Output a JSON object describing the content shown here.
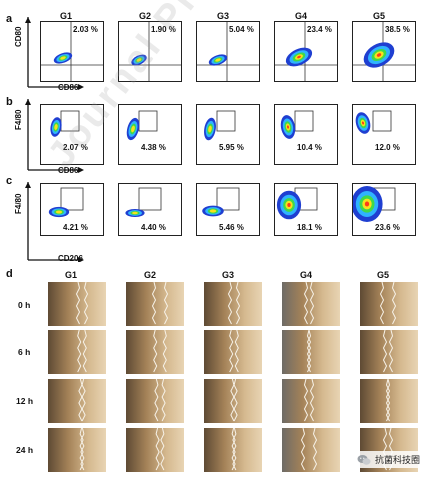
{
  "groups": [
    "G1",
    "G2",
    "G3",
    "G4",
    "G5"
  ],
  "panels": {
    "a": {
      "letter": "a",
      "ylabel": "CD80",
      "xlabel": "CD86",
      "values": [
        "2.03 %",
        "1.90 %",
        "5.04 %",
        "23.4 %",
        "38.5 %"
      ]
    },
    "b": {
      "letter": "b",
      "ylabel": "F4/80",
      "xlabel": "CD86",
      "values": [
        "2.07 %",
        "4.38 %",
        "5.95 %",
        "10.4 %",
        "12.0 %"
      ]
    },
    "c": {
      "letter": "c",
      "ylabel": "F4/80",
      "xlabel": "CD206",
      "values": [
        "4.21 %",
        "4.40 %",
        "5.46 %",
        "18.1 %",
        "23.6 %"
      ]
    },
    "d": {
      "letter": "d",
      "times": [
        "0 h",
        "6 h",
        "12 h",
        "24 h"
      ]
    }
  },
  "watermark": {
    "text": "Journal Pre-proofs",
    "badge": "抗菌科技圈",
    "icon": "wechat-icon"
  }
}
